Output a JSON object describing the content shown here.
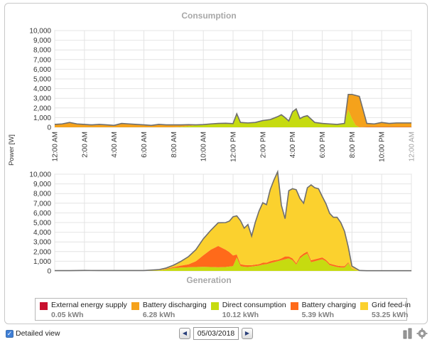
{
  "colors": {
    "external": "#c8102e",
    "battery_discharging": "#f5a21b",
    "direct_consumption": "#c6db10",
    "battery_charging": "#ff6a1a",
    "grid_feed_in": "#fbd12e",
    "outline": "#6e6e6e",
    "grid": "#e4e4e4",
    "axis_text": "#333333",
    "title_text": "#a8a8a8"
  },
  "legend": [
    {
      "key": "external",
      "name": "External energy supply",
      "value": "0.05 kWh"
    },
    {
      "key": "battery_discharging",
      "name": "Battery discharging",
      "value": "6.28 kWh"
    },
    {
      "key": "direct_consumption",
      "name": "Direct consumption",
      "value": "10.12 kWh"
    },
    {
      "key": "battery_charging",
      "name": "Battery charging",
      "value": "5.39 kWh"
    },
    {
      "key": "grid_feed_in",
      "name": "Grid feed-in",
      "value": "53.25 kWh"
    }
  ],
  "controls": {
    "detailed_view_label": "Detailed view",
    "detailed_view_checked": true,
    "date": "05/03/2018",
    "prev_icon": "chevron-left-icon",
    "next_icon": "chevron-right-icon"
  },
  "chart_data": [
    {
      "type": "area",
      "title": "Consumption",
      "ylabel": "Power [W]",
      "y_ticks": [
        "0",
        "1,000",
        "2,000",
        "3,000",
        "4,000",
        "5,000",
        "6,000",
        "7,000",
        "8,000",
        "9,000",
        "10,000"
      ],
      "ylim": [
        0,
        10000
      ],
      "x_tick_labels": [
        "12:00 AM",
        "2:00 AM",
        "4:00 AM",
        "6:00 AM",
        "8:00 AM",
        "10:00 AM",
        "12:00 PM",
        "2:00 PM",
        "4:00 PM",
        "6:00 PM",
        "8:00 PM",
        "10:00 PM",
        "12:00 AM"
      ],
      "stacking": "stacked",
      "x_hours": [
        0.0,
        0.5,
        1.0,
        1.5,
        2.0,
        2.5,
        3.0,
        3.5,
        4.0,
        4.5,
        5.0,
        5.5,
        6.0,
        6.5,
        7.0,
        7.5,
        8.0,
        8.5,
        9.0,
        9.5,
        10.0,
        10.5,
        11.0,
        11.5,
        12.0,
        12.25,
        12.5,
        13.0,
        13.5,
        14.0,
        14.5,
        15.0,
        15.25,
        15.5,
        15.75,
        16.0,
        16.25,
        16.5,
        16.75,
        17.0,
        17.5,
        18.0,
        18.5,
        19.0,
        19.5,
        19.75,
        20.0,
        20.25,
        20.5,
        21.0,
        21.5,
        22.0,
        22.5,
        23.0,
        23.5,
        24.0
      ],
      "series": [
        {
          "name": "External energy supply",
          "key": "external",
          "values": [
            0,
            0,
            0,
            0,
            0,
            0,
            0,
            0,
            0,
            0,
            0,
            0,
            0,
            0,
            0,
            0,
            0,
            0,
            0,
            0,
            0,
            0,
            0,
            0,
            0,
            0,
            0,
            0,
            0,
            0,
            0,
            0,
            0,
            0,
            0,
            0,
            0,
            0,
            0,
            0,
            0,
            0,
            0,
            0,
            0,
            0,
            0,
            0,
            0,
            30,
            30,
            30,
            30,
            30,
            30,
            30
          ]
        },
        {
          "name": "Direct consumption",
          "key": "direct_consumption",
          "values": [
            0,
            0,
            0,
            0,
            0,
            0,
            0,
            0,
            0,
            0,
            0,
            0,
            0,
            0,
            0,
            0,
            0,
            50,
            120,
            200,
            280,
            350,
            400,
            420,
            380,
            1400,
            500,
            450,
            500,
            700,
            800,
            1100,
            1300,
            1000,
            650,
            1600,
            1900,
            900,
            1100,
            1200,
            500,
            400,
            350,
            300,
            400,
            1800,
            900,
            200,
            0,
            0,
            0,
            0,
            0,
            0,
            0,
            0
          ]
        },
        {
          "name": "Battery discharging",
          "key": "battery_discharging",
          "values": [
            300,
            350,
            500,
            350,
            300,
            250,
            300,
            250,
            200,
            400,
            350,
            300,
            250,
            200,
            300,
            250,
            250,
            200,
            150,
            50,
            0,
            0,
            0,
            0,
            0,
            0,
            0,
            0,
            0,
            0,
            0,
            0,
            0,
            0,
            0,
            0,
            0,
            0,
            0,
            0,
            0,
            0,
            0,
            0,
            0,
            1600,
            2500,
            3100,
            3200,
            370,
            320,
            470,
            370,
            420,
            420,
            420
          ]
        }
      ]
    },
    {
      "type": "area",
      "title": "Generation",
      "ylabel": "Power [W]",
      "y_ticks": [
        "0",
        "1,000",
        "2,000",
        "3,000",
        "4,000",
        "5,000",
        "6,000",
        "7,000",
        "8,000",
        "9,000",
        "10,000"
      ],
      "ylim": [
        0,
        10000
      ],
      "stacking": "stacked",
      "x_hours": [
        0.0,
        1.0,
        2.0,
        3.0,
        4.0,
        5.0,
        6.0,
        7.0,
        7.5,
        8.0,
        8.5,
        9.0,
        9.5,
        10.0,
        10.5,
        11.0,
        11.5,
        11.75,
        12.0,
        12.25,
        12.5,
        12.75,
        13.0,
        13.25,
        13.5,
        13.75,
        14.0,
        14.25,
        14.5,
        14.75,
        15.0,
        15.25,
        15.5,
        15.75,
        16.0,
        16.25,
        16.5,
        16.75,
        17.0,
        17.25,
        17.5,
        17.75,
        18.0,
        18.25,
        18.5,
        18.75,
        19.0,
        19.25,
        19.5,
        19.75,
        20.0,
        20.5,
        21.0,
        22.0,
        23.0,
        24.0
      ],
      "series": [
        {
          "name": "Direct consumption",
          "key": "direct_consumption",
          "values": [
            0,
            0,
            0,
            0,
            0,
            0,
            0,
            50,
            150,
            300,
            350,
            380,
            400,
            420,
            400,
            380,
            400,
            450,
            500,
            1400,
            500,
            420,
            400,
            450,
            500,
            550,
            650,
            700,
            800,
            900,
            1000,
            1100,
            1200,
            1300,
            1100,
            650,
            1300,
            1600,
            1800,
            900,
            1000,
            1100,
            1200,
            1000,
            600,
            500,
            400,
            350,
            350,
            800,
            200,
            0,
            0,
            0,
            0,
            0
          ]
        },
        {
          "name": "Battery charging",
          "key": "battery_charging",
          "values": [
            0,
            0,
            0,
            0,
            0,
            0,
            0,
            0,
            50,
            100,
            200,
            300,
            600,
            1200,
            1800,
            2200,
            1800,
            1500,
            1100,
            300,
            200,
            200,
            200,
            150,
            150,
            150,
            200,
            150,
            200,
            200,
            150,
            200,
            300,
            200,
            200,
            150,
            200,
            200,
            200,
            200,
            200,
            200,
            200,
            150,
            150,
            150,
            150,
            150,
            150,
            100,
            50,
            0,
            0,
            0,
            0,
            0
          ]
        },
        {
          "name": "Grid feed-in",
          "key": "grid_feed_in",
          "values": [
            30,
            30,
            50,
            40,
            40,
            40,
            40,
            80,
            100,
            200,
            450,
            800,
            1200,
            1700,
            2000,
            2400,
            2800,
            3200,
            4000,
            4000,
            4500,
            3800,
            4200,
            3000,
            4400,
            5500,
            6200,
            6000,
            7400,
            8300,
            9100,
            5500,
            3900,
            6800,
            7200,
            7600,
            6000,
            5200,
            6600,
            7800,
            7400,
            7200,
            6300,
            5800,
            5200,
            4900,
            5000,
            4500,
            3600,
            1600,
            250,
            50,
            20,
            20,
            20,
            20
          ]
        }
      ]
    }
  ]
}
